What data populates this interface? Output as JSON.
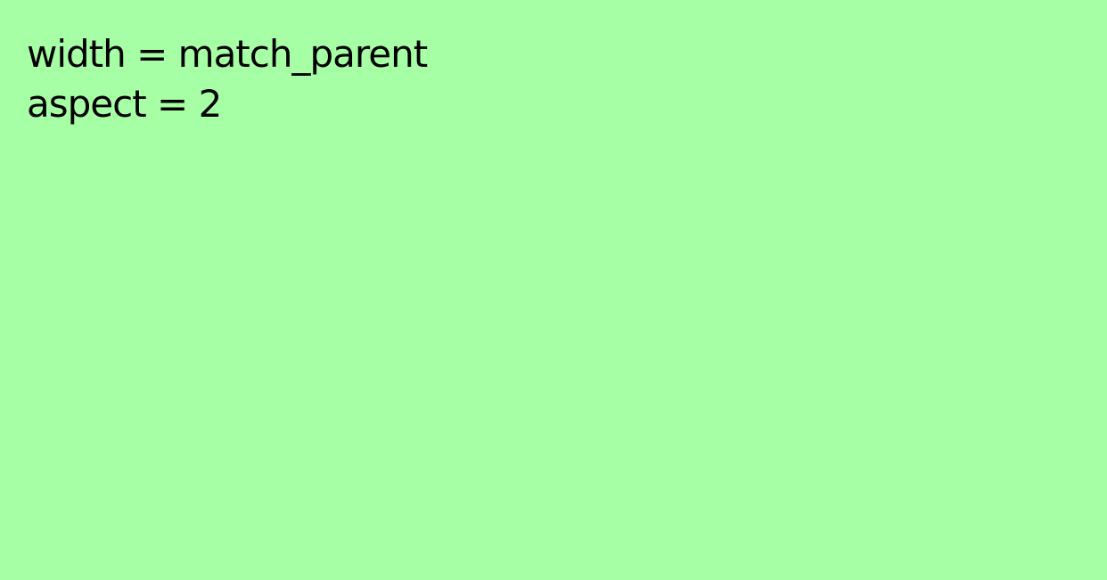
{
  "panel": {
    "background_color": "#A6FFA4",
    "text_color": "#000000",
    "lines": [
      "width = match_parent",
      "aspect = 2"
    ]
  }
}
